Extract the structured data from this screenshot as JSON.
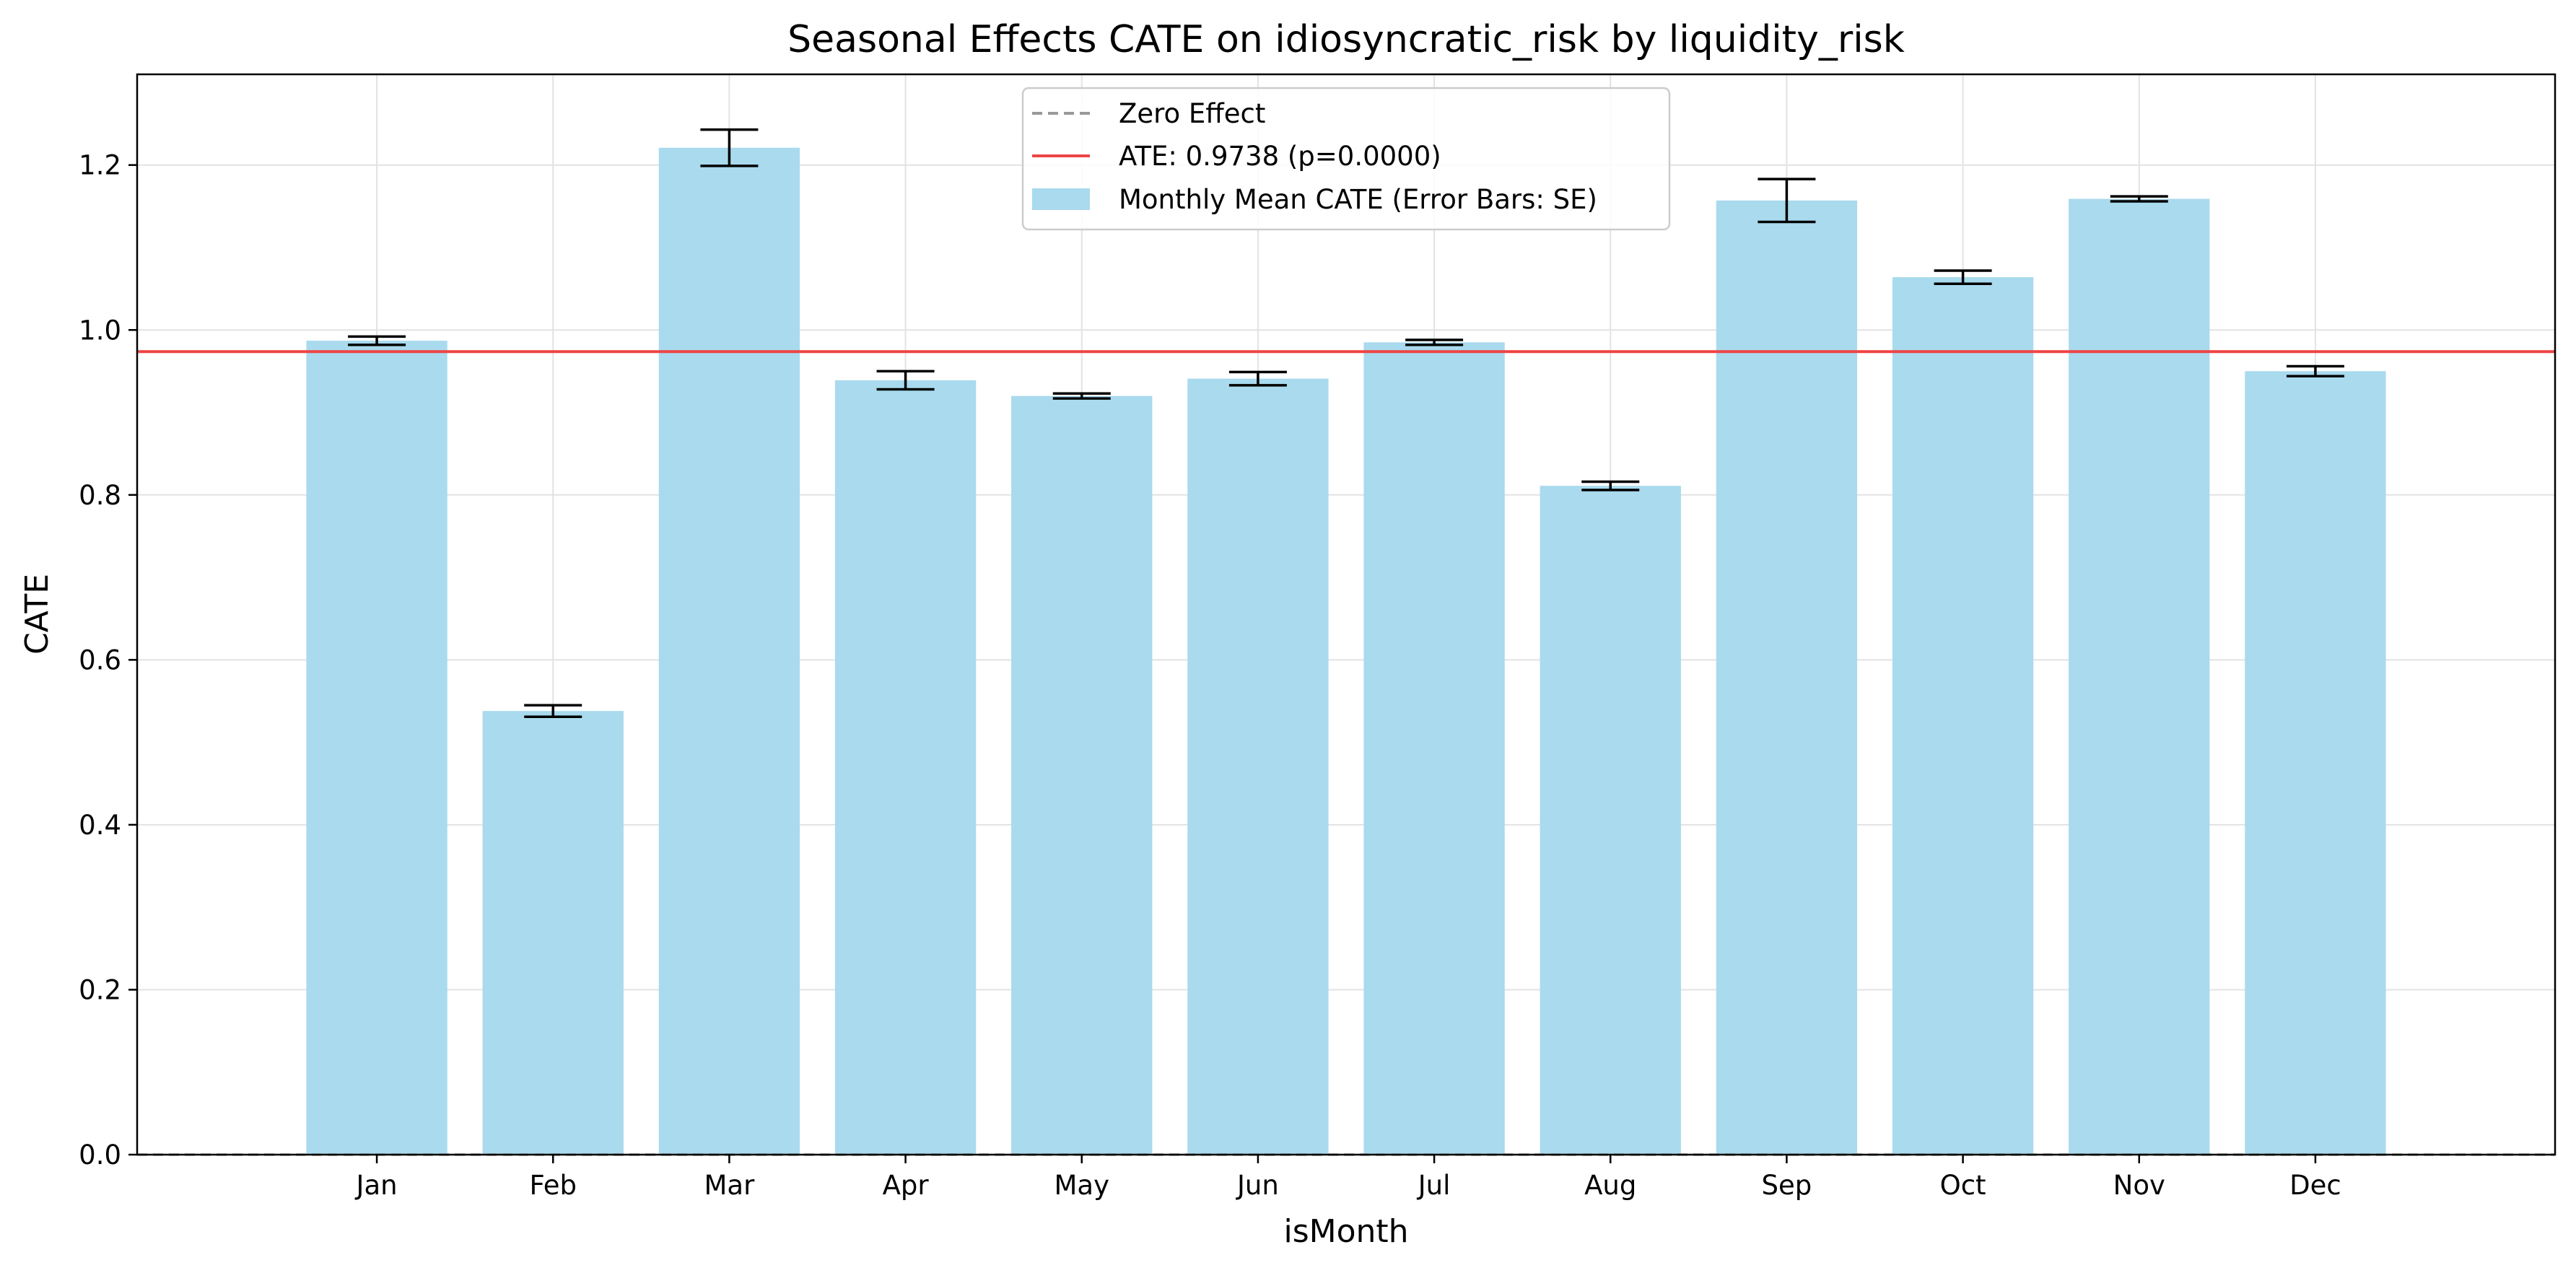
{
  "chart_data": {
    "type": "bar",
    "title": "Seasonal Effects CATE  on idiosyncratic_risk by liquidity_risk",
    "xlabel": "isMonth",
    "ylabel": "CATE",
    "categories": [
      "Jan",
      "Feb",
      "Mar",
      "Apr",
      "May",
      "Jun",
      "Jul",
      "Aug",
      "Sep",
      "Oct",
      "Nov",
      "Dec"
    ],
    "values": [
      0.987,
      0.538,
      1.221,
      0.939,
      0.92,
      0.941,
      0.985,
      0.811,
      1.157,
      1.064,
      1.159,
      0.95
    ],
    "errors": [
      0.005,
      0.007,
      0.022,
      0.011,
      0.003,
      0.008,
      0.003,
      0.005,
      0.026,
      0.008,
      0.003,
      0.006
    ],
    "ylim": [
      0,
      1.31
    ],
    "yticks": [
      0.0,
      0.2,
      0.4,
      0.6,
      0.8,
      1.0,
      1.2
    ],
    "ytick_labels": [
      "0.0",
      "0.2",
      "0.4",
      "0.6",
      "0.8",
      "1.0",
      "1.2"
    ],
    "ate_value": 0.9738,
    "zero_value": 0,
    "grid": true,
    "legend_position": "top-center",
    "legend": [
      {
        "label": "Zero Effect",
        "style": "dashed-line",
        "color": "#999999"
      },
      {
        "label": "ATE: 0.9738 (p=0.0000)",
        "style": "line",
        "color": "#ee4444"
      },
      {
        "label": "Monthly Mean CATE (Error Bars: SE)",
        "style": "patch",
        "color": "#a9daee"
      }
    ],
    "colors": {
      "bar": "#a9daee",
      "ate_line": "#ee4444",
      "zero_line": "#999999",
      "error_bar": "#000000",
      "grid": "#e3e3e3"
    }
  }
}
